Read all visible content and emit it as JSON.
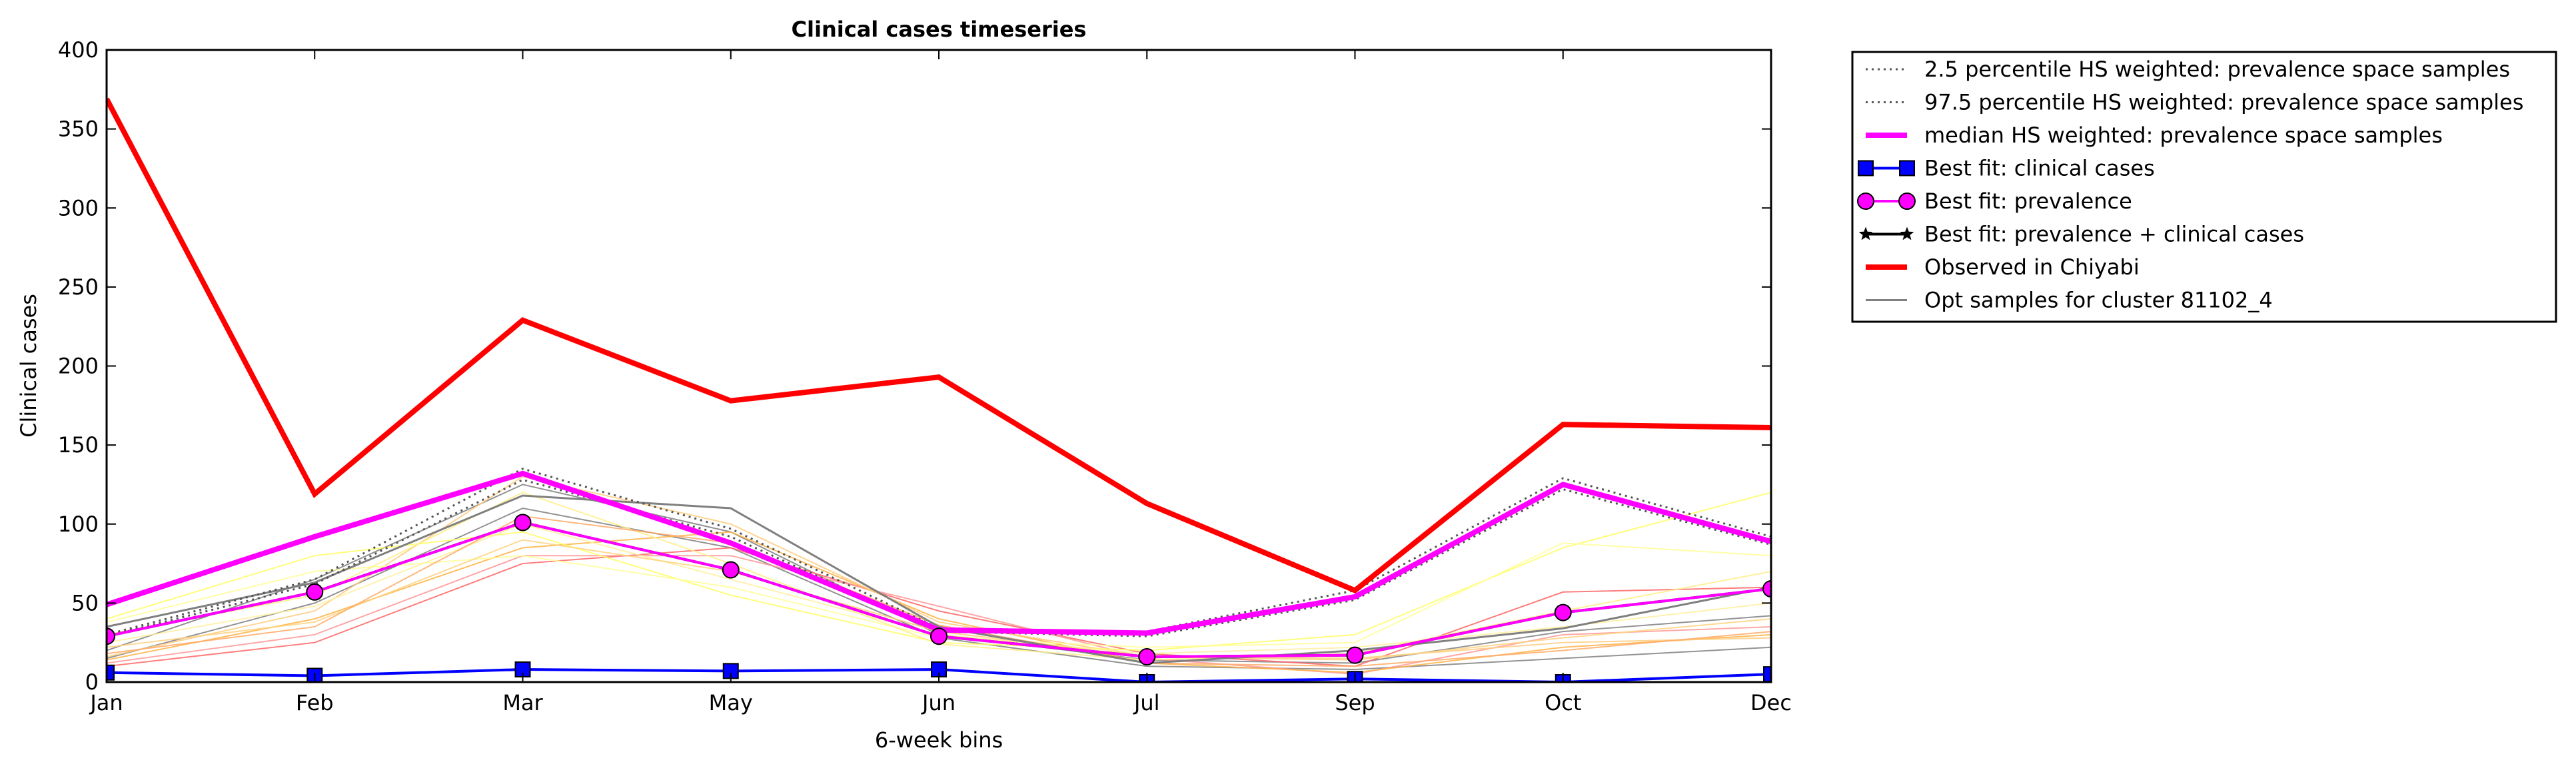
{
  "chart_data": {
    "type": "line",
    "title": "Clinical cases timeseries",
    "xlabel": "6-week bins",
    "ylabel": "Clinical cases",
    "categories": [
      "Jan",
      "Feb",
      "Mar",
      "May",
      "Jun",
      "Jul",
      "Sep",
      "Oct",
      "Dec"
    ],
    "ylim": [
      0,
      400
    ],
    "yticks": [
      0,
      50,
      100,
      150,
      200,
      250,
      300,
      350,
      400
    ],
    "grid": false,
    "legend_position": "outside-right",
    "series": [
      {
        "name": "2.5 percentile HS weighted: prevalence space samples",
        "style": "dotted",
        "color": "#555555",
        "values": [
          29,
          62,
          128,
          92,
          32,
          29,
          52,
          122,
          87
        ]
      },
      {
        "name": "97.5 percentile HS weighted: prevalence space samples",
        "style": "dotted",
        "color": "#555555",
        "values": [
          30,
          65,
          135,
          97,
          34,
          32,
          58,
          129,
          92
        ]
      },
      {
        "name": "median HS weighted: prevalence space samples",
        "style": "thick",
        "color": "#ff00ff",
        "values": [
          49,
          92,
          132,
          88,
          33,
          31,
          54,
          125,
          89
        ]
      },
      {
        "name": "Best fit: clinical cases",
        "style": "square-marker",
        "color": "#0000ff",
        "values": [
          6,
          4,
          8,
          7,
          8,
          0,
          2,
          0,
          5
        ]
      },
      {
        "name": "Best fit: prevalence",
        "style": "circle-marker",
        "color": "#ff00ff",
        "values": [
          29,
          57,
          101,
          71,
          29,
          16,
          17,
          44,
          59
        ]
      },
      {
        "name": "Best fit: prevalence + clinical cases",
        "style": "star-marker",
        "color": "#000000",
        "values": [
          29,
          57,
          101,
          71,
          29,
          16,
          17,
          44,
          59
        ]
      },
      {
        "name": "Observed in Chiyabi",
        "style": "thick",
        "color": "#ff0000",
        "values": [
          369,
          119,
          229,
          178,
          193,
          113,
          58,
          163,
          161
        ]
      },
      {
        "name": "Opt samples for cluster 81102_4",
        "style": "thin",
        "color": "#808080",
        "values": [
          35,
          63,
          118,
          110,
          35,
          12,
          20,
          34,
          60
        ]
      }
    ],
    "sample_lines": [
      {
        "color": "#808080",
        "values": [
          20,
          65,
          125,
          95,
          30,
          14,
          12,
          32,
          42
        ]
      },
      {
        "color": "#808080",
        "values": [
          15,
          50,
          110,
          85,
          28,
          10,
          8,
          15,
          22
        ]
      },
      {
        "color": "#ff6666",
        "values": [
          10,
          25,
          75,
          85,
          45,
          18,
          10,
          57,
          60
        ]
      },
      {
        "color": "#ff9999",
        "values": [
          12,
          30,
          80,
          80,
          48,
          15,
          5,
          30,
          35
        ]
      },
      {
        "color": "#ffb347",
        "values": [
          14,
          40,
          85,
          95,
          40,
          12,
          6,
          22,
          30
        ]
      },
      {
        "color": "#ffcc80",
        "values": [
          16,
          45,
          130,
          100,
          38,
          16,
          15,
          25,
          28
        ]
      },
      {
        "color": "#ffff66",
        "values": [
          40,
          80,
          95,
          55,
          25,
          20,
          30,
          85,
          120
        ]
      },
      {
        "color": "#ffff99",
        "values": [
          38,
          70,
          80,
          60,
          28,
          22,
          25,
          88,
          80
        ]
      },
      {
        "color": "#ffee88",
        "values": [
          30,
          55,
          120,
          75,
          24,
          14,
          18,
          45,
          70
        ]
      },
      {
        "color": "#fff0a0",
        "values": [
          25,
          48,
          100,
          65,
          30,
          18,
          22,
          35,
          50
        ]
      },
      {
        "color": "#ffd27f",
        "values": [
          22,
          38,
          90,
          70,
          32,
          16,
          14,
          28,
          40
        ]
      },
      {
        "color": "#ffaa66",
        "values": [
          18,
          35,
          105,
          88,
          36,
          12,
          10,
          20,
          32
        ]
      }
    ]
  }
}
